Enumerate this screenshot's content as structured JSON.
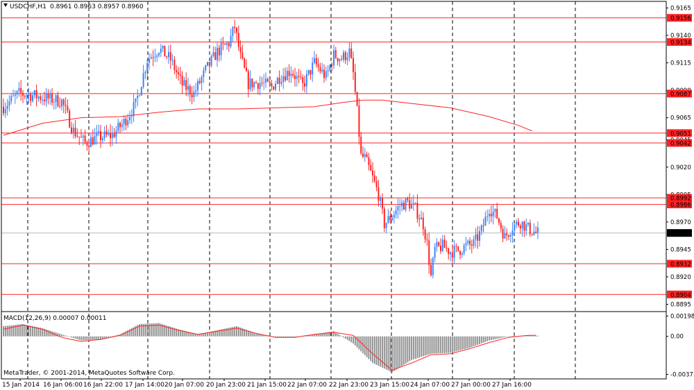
{
  "header": {
    "symbol_label": "USDCHF,H1",
    "ohlc_label": "0.8961 0.8963 0.8957 0.8960",
    "dropdown_icon": "triangle-down-icon"
  },
  "macd_header": {
    "label": "MACD(12,26,9) 0.00007 0.00011"
  },
  "footer": {
    "copyright": "MetaTrader, © 2001-2014, MetaQuotes Software Corp."
  },
  "colors": {
    "bull_candle": "#3b82ff",
    "bear_candle": "#ff2222",
    "level_line": "#ff2222",
    "ma_line": "#ff2222",
    "histogram": "#8a8a8a",
    "signal_line": "#ff2222",
    "current_price_bg": "#000000",
    "level_badge_bg": "#ff2222"
  },
  "chart_data": [
    {
      "type": "candlestick",
      "title": "USDCHF,H1",
      "x_tick_labels": [
        "15 Jan 2014",
        "16 Jan 06:00",
        "16 Jan 22:00",
        "17 Jan 14:00",
        "20 Jan 07:00",
        "20 Jan 23:00",
        "21 Jan 15:00",
        "22 Jan 07:00",
        "22 Jan 23:00",
        "23 Jan 15:00",
        "24 Jan 07:00",
        "27 Jan 00:00",
        "27 Jan 16:00"
      ],
      "y_tick_labels": [
        "0.9165",
        "0.9140",
        "0.9115",
        "0.9090",
        "0.9065",
        "0.9045",
        "0.9020",
        "0.8995",
        "0.8970",
        "0.8945",
        "0.8920",
        "0.8895"
      ],
      "ylim": [
        0.8889,
        0.9171
      ],
      "price_levels": [
        "0.9156",
        "0.9134",
        "0.9087",
        "0.9051",
        "0.9042",
        "0.8992",
        "0.8986",
        "0.8932",
        "0.8904"
      ],
      "current_price": "0.8960",
      "anchors": [
        [
          0,
          0.9075
        ],
        [
          8,
          0.9087
        ],
        [
          16,
          0.9085
        ],
        [
          24,
          0.9082
        ],
        [
          30,
          0.908
        ],
        [
          36,
          0.9053
        ],
        [
          42,
          0.9042
        ],
        [
          48,
          0.9047
        ],
        [
          56,
          0.9049
        ],
        [
          62,
          0.9061
        ],
        [
          68,
          0.9077
        ],
        [
          74,
          0.9118
        ],
        [
          80,
          0.9128
        ],
        [
          86,
          0.9118
        ],
        [
          92,
          0.9095
        ],
        [
          98,
          0.9087
        ],
        [
          104,
          0.9108
        ],
        [
          110,
          0.9125
        ],
        [
          116,
          0.9133
        ],
        [
          119,
          0.9148
        ],
        [
          122,
          0.912
        ],
        [
          126,
          0.9096
        ],
        [
          132,
          0.9097
        ],
        [
          138,
          0.9093
        ],
        [
          142,
          0.9102
        ],
        [
          148,
          0.9108
        ],
        [
          154,
          0.9094
        ],
        [
          160,
          0.9115
        ],
        [
          166,
          0.9102
        ],
        [
          170,
          0.9122
        ],
        [
          174,
          0.9119
        ],
        [
          178,
          0.9125
        ],
        [
          180,
          0.9105
        ],
        [
          182,
          0.907
        ],
        [
          184,
          0.903
        ],
        [
          186,
          0.9028
        ],
        [
          190,
          0.901
        ],
        [
          193,
          0.8995
        ],
        [
          196,
          0.8968
        ],
        [
          200,
          0.8976
        ],
        [
          204,
          0.8985
        ],
        [
          208,
          0.8988
        ],
        [
          212,
          0.8982
        ],
        [
          216,
          0.8968
        ],
        [
          218,
          0.895
        ],
        [
          220,
          0.892
        ],
        [
          222,
          0.8945
        ],
        [
          226,
          0.8948
        ],
        [
          230,
          0.8943
        ],
        [
          234,
          0.8944
        ],
        [
          238,
          0.8948
        ],
        [
          242,
          0.895
        ],
        [
          246,
          0.8962
        ],
        [
          250,
          0.8983
        ],
        [
          254,
          0.8975
        ],
        [
          258,
          0.8956
        ],
        [
          262,
          0.8966
        ],
        [
          266,
          0.897
        ],
        [
          270,
          0.8964
        ],
        [
          274,
          0.896
        ]
      ],
      "moving_average": [
        [
          0,
          0.9049
        ],
        [
          20,
          0.906
        ],
        [
          40,
          0.9065
        ],
        [
          60,
          0.9066
        ],
        [
          80,
          0.907
        ],
        [
          100,
          0.9073
        ],
        [
          120,
          0.9073
        ],
        [
          140,
          0.9074
        ],
        [
          160,
          0.9075
        ],
        [
          175,
          0.9079
        ],
        [
          185,
          0.9081
        ],
        [
          195,
          0.9081
        ],
        [
          210,
          0.9078
        ],
        [
          230,
          0.9074
        ],
        [
          250,
          0.9066
        ],
        [
          265,
          0.9058
        ],
        [
          272,
          0.9053
        ]
      ]
    },
    {
      "type": "bar",
      "title": "MACD(12,26,9) 0.00007 0.00011",
      "y_tick_labels": [
        "0.00198",
        "0.00",
        "-0.00371"
      ],
      "ylim": [
        -0.00408,
        0.00235
      ],
      "series": [
        {
          "name": "MACD",
          "anchors": [
            [
              0,
              0.001
            ],
            [
              10,
              0.0012
            ],
            [
              20,
              0.0008
            ],
            [
              30,
              0.0002
            ],
            [
              40,
              -0.0004
            ],
            [
              50,
              -0.0003
            ],
            [
              60,
              0.0002
            ],
            [
              70,
              0.0012
            ],
            [
              80,
              0.0013
            ],
            [
              90,
              0.0007
            ],
            [
              100,
              0.0002
            ],
            [
              110,
              0.0006
            ],
            [
              120,
              0.001
            ],
            [
              130,
              0.0003
            ],
            [
              140,
              -0.0001
            ],
            [
              150,
              -0.0001
            ],
            [
              160,
              0.0002
            ],
            [
              170,
              0.0005
            ],
            [
              180,
              -0.0007
            ],
            [
              190,
              -0.0026
            ],
            [
              200,
              -0.0035
            ],
            [
              210,
              -0.0023
            ],
            [
              220,
              -0.0017
            ],
            [
              230,
              -0.0016
            ],
            [
              240,
              -0.0011
            ],
            [
              250,
              -0.0004
            ],
            [
              260,
              0.0
            ],
            [
              270,
              0.0001
            ],
            [
              274,
              7e-05
            ]
          ]
        },
        {
          "name": "Signal",
          "anchors": [
            [
              0,
              0.0007
            ],
            [
              10,
              0.0011
            ],
            [
              20,
              0.0007
            ],
            [
              30,
              -0.0001
            ],
            [
              40,
              -0.0005
            ],
            [
              50,
              -0.0003
            ],
            [
              60,
              0.0001
            ],
            [
              70,
              0.001
            ],
            [
              80,
              0.0011
            ],
            [
              90,
              0.0006
            ],
            [
              100,
              0.0002
            ],
            [
              110,
              0.0005
            ],
            [
              120,
              0.0008
            ],
            [
              130,
              0.0003
            ],
            [
              140,
              -0.0001
            ],
            [
              150,
              -0.0001
            ],
            [
              160,
              0.0002
            ],
            [
              170,
              0.0004
            ],
            [
              180,
              0.0001
            ],
            [
              190,
              -0.0017
            ],
            [
              200,
              -0.0033
            ],
            [
              210,
              -0.0026
            ],
            [
              220,
              -0.0018
            ],
            [
              230,
              -0.0017
            ],
            [
              240,
              -0.0012
            ],
            [
              250,
              -0.0006
            ],
            [
              260,
              -0.0001
            ],
            [
              270,
              0.0001
            ],
            [
              274,
              0.00011
            ]
          ]
        }
      ]
    }
  ]
}
